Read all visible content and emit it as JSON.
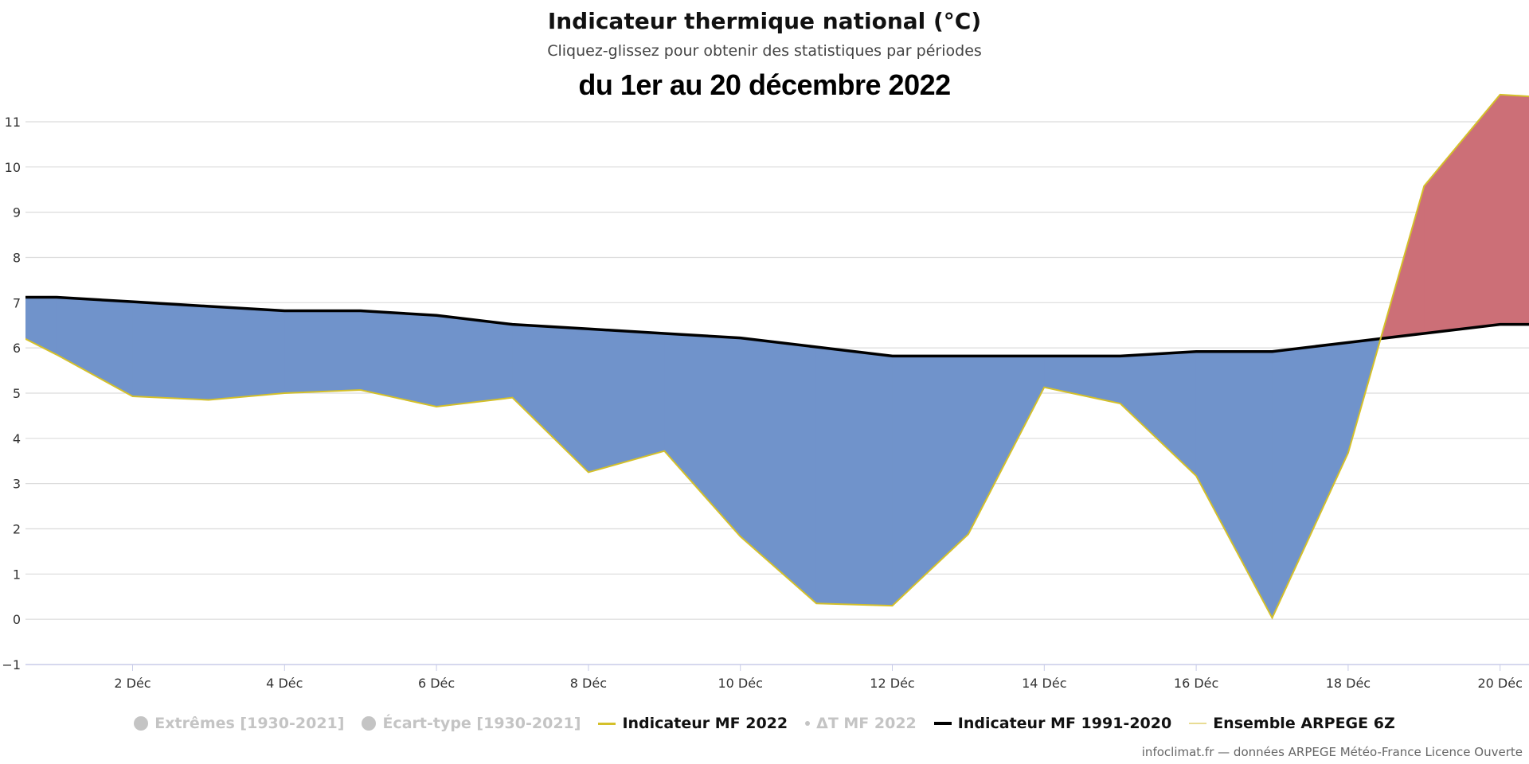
{
  "chart_data": {
    "type": "area",
    "title": "Indicateur thermique national (°C)",
    "subtitle": "Cliquez-glissez pour obtenir des statistiques par périodes",
    "period_label": "du 1er au 20 décembre 2022",
    "xlabel": "",
    "ylabel": "",
    "xlim": [
      0.6,
      20.4
    ],
    "ylim": [
      -1,
      11.6
    ],
    "y_ticks": [
      -1,
      0,
      1,
      2,
      3,
      4,
      5,
      6,
      7,
      8,
      9,
      10,
      11
    ],
    "x_ticks": [
      {
        "day": 2,
        "label": "2 Déc"
      },
      {
        "day": 4,
        "label": "4 Déc"
      },
      {
        "day": 6,
        "label": "6 Déc"
      },
      {
        "day": 8,
        "label": "8 Déc"
      },
      {
        "day": 10,
        "label": "10 Déc"
      },
      {
        "day": 12,
        "label": "12 Déc"
      },
      {
        "day": 14,
        "label": "14 Déc"
      },
      {
        "day": 16,
        "label": "16 Déc"
      },
      {
        "day": 18,
        "label": "18 Déc"
      },
      {
        "day": 20,
        "label": "20 Déc"
      }
    ],
    "grid": true,
    "legend_position": "bottom",
    "x": [
      0,
      1,
      2,
      3,
      4,
      5,
      6,
      7,
      8,
      9,
      10,
      11,
      12,
      13,
      14,
      15,
      16,
      17,
      18,
      19,
      20,
      21
    ],
    "series": [
      {
        "name": "Indicateur MF 2022",
        "color": "#d4c02a",
        "values": [
          6.7,
          5.85,
          4.93,
          4.85,
          5.0,
          5.07,
          4.7,
          4.9,
          3.25,
          3.72,
          1.83,
          0.35,
          0.3,
          1.88,
          5.13,
          4.77,
          3.17,
          0.03,
          3.68,
          9.58,
          11.6,
          11.5
        ]
      },
      {
        "name": "Indicateur MF 1991-2020",
        "color": "#000000",
        "values": [
          7.12,
          7.12,
          7.02,
          6.92,
          6.82,
          6.82,
          6.72,
          6.52,
          6.42,
          6.32,
          6.22,
          6.02,
          5.82,
          5.82,
          5.82,
          5.82,
          5.92,
          5.92,
          6.12,
          6.32,
          6.52,
          6.52
        ]
      }
    ],
    "fill_below_normal_color": "#7093cb",
    "fill_above_normal_color": "#cc6f77"
  },
  "legend": [
    {
      "label": "Extrêmes [1930-2021]",
      "state": "off",
      "symbol": "circle"
    },
    {
      "label": "Écart-type [1930-2021]",
      "state": "off",
      "symbol": "circle"
    },
    {
      "label": "Indicateur MF 2022",
      "state": "on",
      "symbol": "line",
      "color": "#d4c02a"
    },
    {
      "label": "ΔT MF 2022",
      "state": "off",
      "symbol": "small-dot"
    },
    {
      "label": "Indicateur MF 1991-2020",
      "state": "on",
      "symbol": "line",
      "color": "#000000"
    },
    {
      "label": "Ensemble ARPEGE 6Z",
      "state": "on",
      "symbol": "line",
      "color": "#e8dc94"
    }
  ],
  "credits": "infoclimat.fr — données ARPEGE Météo-France Licence Ouverte"
}
